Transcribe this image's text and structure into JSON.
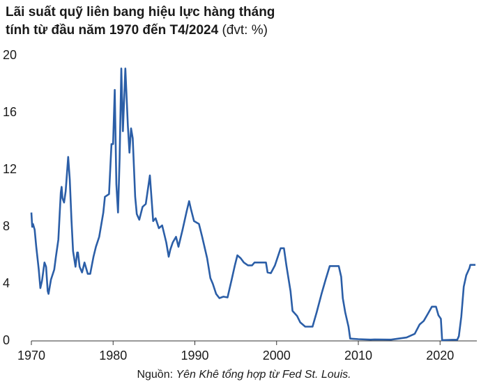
{
  "chart_data": {
    "type": "line",
    "title": [
      "Lãi suất quỹ liên bang hiệu lực hàng tháng",
      "tính từ đầu năm 1970 đến T4/2024"
    ],
    "unit": "(đvt: %)",
    "source_label": "Nguồn:",
    "source": "Yên Khê tổng hợp từ Fed St. Louis.",
    "color": "#2b5ea7",
    "xlim": [
      1970,
      2024.5
    ],
    "xticks": [
      1970,
      1980,
      1990,
      2000,
      2010,
      2020
    ],
    "ylim": [
      0,
      20
    ],
    "yticks": [
      0,
      4,
      8,
      12,
      16,
      20
    ],
    "x": [
      1970.0,
      1970.1,
      1970.2,
      1970.4,
      1970.6,
      1970.9,
      1971.1,
      1971.3,
      1971.6,
      1971.8,
      1972.0,
      1972.1,
      1972.4,
      1972.8,
      1973.0,
      1973.3,
      1973.6,
      1973.7,
      1973.8,
      1974.0,
      1974.2,
      1974.5,
      1974.7,
      1974.9,
      1975.1,
      1975.4,
      1975.6,
      1975.7,
      1975.9,
      1976.2,
      1976.5,
      1976.9,
      1977.2,
      1977.6,
      1977.9,
      1978.3,
      1978.8,
      1979.0,
      1979.5,
      1979.8,
      1980.0,
      1980.2,
      1980.4,
      1980.6,
      1980.8,
      1981.0,
      1981.2,
      1981.5,
      1981.8,
      1982.0,
      1982.2,
      1982.4,
      1982.7,
      1982.9,
      1983.2,
      1983.6,
      1984.0,
      1984.5,
      1984.9,
      1985.2,
      1985.6,
      1986.0,
      1986.5,
      1986.8,
      1987.0,
      1987.3,
      1987.7,
      1988.0,
      1988.5,
      1989.0,
      1989.3,
      1989.5,
      1989.9,
      1990.5,
      1990.9,
      1991.5,
      1991.9,
      1992.2,
      1992.6,
      1993.0,
      1993.5,
      1994.0,
      1994.5,
      1994.9,
      1995.2,
      1995.6,
      1996.0,
      1996.5,
      1997.0,
      1997.3,
      1998.0,
      1998.7,
      1998.9,
      1999.3,
      1999.8,
      2000.5,
      2000.9,
      2001.2,
      2001.7,
      2001.95,
      2002.5,
      2002.9,
      2003.5,
      2004.4,
      2004.9,
      2005.5,
      2006.0,
      2006.5,
      2007.6,
      2007.9,
      2008.1,
      2008.4,
      2008.8,
      2009.0,
      2010.0,
      2011.5,
      2012.0,
      2014.0,
      2015.9,
      2016.9,
      2017.5,
      2018.0,
      2018.5,
      2019.0,
      2019.5,
      2019.8,
      2020.1,
      2020.25,
      2021.5,
      2022.1,
      2022.3,
      2022.6,
      2022.9,
      2023.2,
      2023.6,
      2023.7,
      2024.33
    ],
    "values": [
      9.0,
      8.0,
      8.2,
      7.8,
      6.6,
      5.0,
      3.7,
      4.2,
      5.5,
      5.2,
      3.5,
      3.3,
      4.3,
      5.0,
      5.9,
      7.1,
      10.4,
      10.8,
      10.0,
      9.7,
      10.5,
      12.9,
      11.3,
      8.5,
      6.3,
      5.2,
      6.2,
      6.2,
      5.2,
      4.8,
      5.5,
      4.7,
      4.7,
      5.9,
      6.6,
      7.3,
      9.0,
      10.1,
      10.3,
      13.8,
      13.8,
      17.6,
      11.0,
      9.0,
      12.8,
      19.1,
      14.7,
      19.1,
      15.1,
      13.2,
      14.9,
      14.2,
      10.1,
      8.9,
      8.5,
      9.4,
      9.6,
      11.6,
      8.4,
      8.6,
      7.9,
      8.1,
      6.9,
      5.9,
      6.4,
      6.9,
      7.3,
      6.6,
      7.8,
      9.1,
      9.8,
      9.3,
      8.4,
      8.2,
      7.3,
      5.8,
      4.4,
      4.0,
      3.3,
      3.0,
      3.1,
      3.05,
      4.3,
      5.3,
      6.0,
      5.8,
      5.5,
      5.3,
      5.3,
      5.5,
      5.5,
      5.5,
      4.8,
      4.75,
      5.3,
      6.5,
      6.5,
      5.3,
      3.5,
      2.1,
      1.75,
      1.3,
      1.0,
      1.0,
      2.0,
      3.3,
      4.3,
      5.25,
      5.25,
      4.5,
      3.0,
      2.0,
      1.0,
      0.16,
      0.12,
      0.09,
      0.1,
      0.09,
      0.24,
      0.5,
      1.15,
      1.4,
      1.9,
      2.4,
      2.4,
      1.8,
      1.55,
      0.05,
      0.08,
      0.08,
      0.33,
      1.7,
      3.8,
      4.6,
      5.1,
      5.33,
      5.33
    ]
  }
}
